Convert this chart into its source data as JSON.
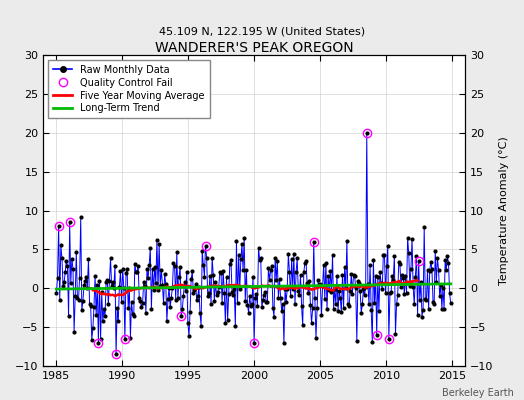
{
  "title": "WANDERER'S PEAK OREGON",
  "subtitle": "45.109 N, 122.195 W (United States)",
  "ylabel": "Temperature Anomaly (°C)",
  "credit": "Berkeley Earth",
  "xlim": [
    1984,
    2016
  ],
  "ylim": [
    -10,
    30
  ],
  "yticks_left": [
    -10,
    -5,
    0,
    5,
    10,
    15,
    20,
    25,
    30
  ],
  "yticks_right": [
    -10,
    -5,
    0,
    5,
    10,
    15,
    20,
    25,
    30
  ],
  "xticks": [
    1985,
    1990,
    1995,
    2000,
    2005,
    2010,
    2015
  ],
  "bg_color": "#ebebeb",
  "plot_bg_color": "#ffffff",
  "raw_color": "#0000ff",
  "raw_marker_color": "#000000",
  "qc_fail_color": "#ff00ff",
  "moving_avg_color": "#ff0000",
  "trend_color": "#00bb00",
  "seed": 12345
}
